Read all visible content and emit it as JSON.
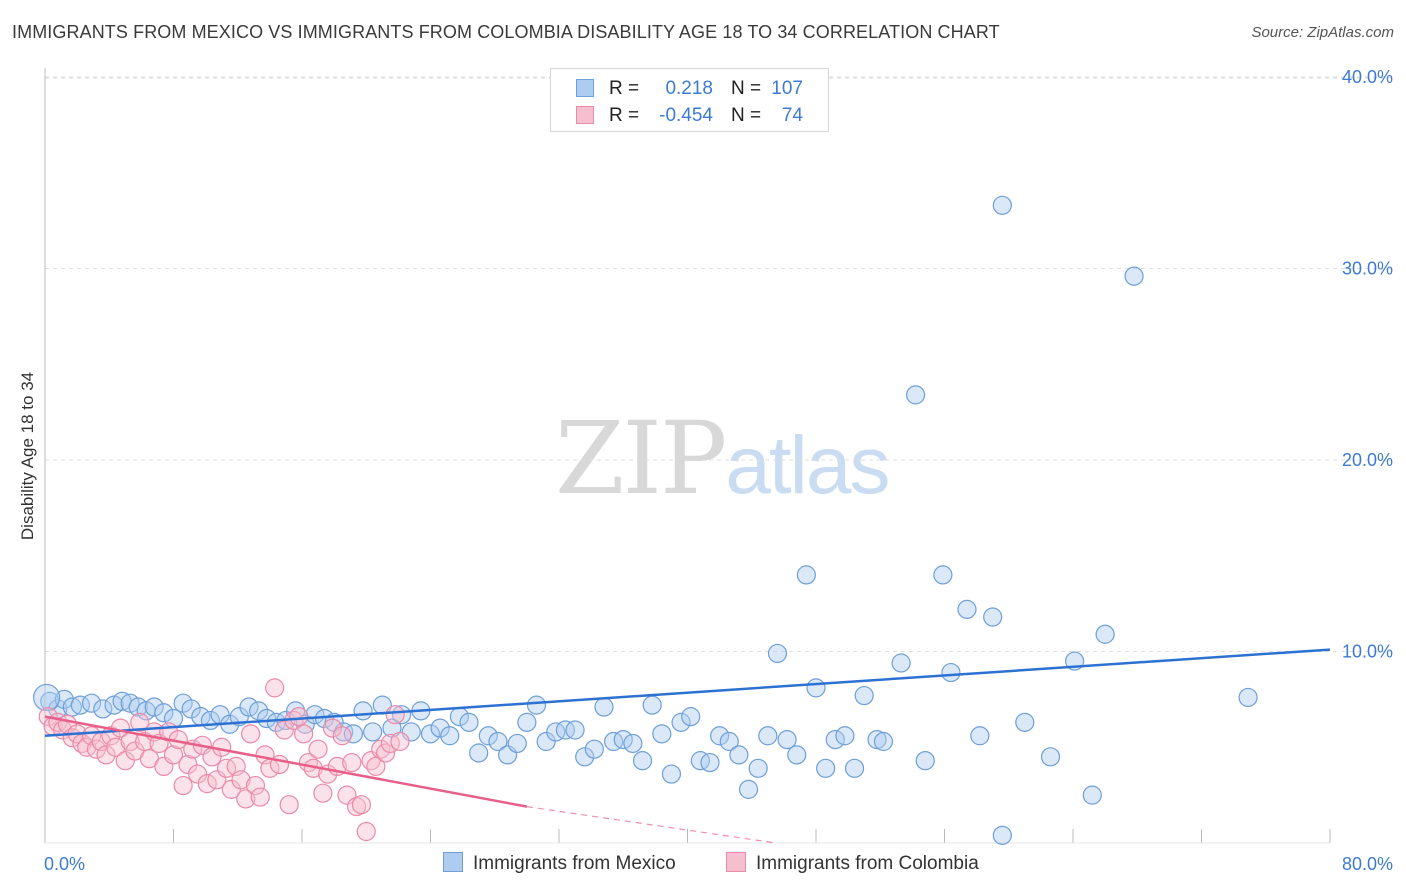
{
  "title": "IMMIGRANTS FROM MEXICO VS IMMIGRANTS FROM COLOMBIA DISABILITY AGE 18 TO 34 CORRELATION CHART",
  "source": "Source: ZipAtlas.com",
  "watermark": {
    "zip": "ZIP",
    "atlas": "atlas"
  },
  "colors": {
    "mexico_fill": "#aecbf0",
    "mexico_stroke": "#6e9fd9",
    "mexico_line": "#2d72d2",
    "colombia_fill": "#f6bfd0",
    "colombia_stroke": "#ea8aa8",
    "colombia_line": "#e8608a",
    "tick_text": "#3d7bd1",
    "grid": "#dddddd"
  },
  "legend": {
    "rows": [
      {
        "r_label": "R =",
        "r_value": "0.218",
        "n_label": "N =",
        "n_value": "107"
      },
      {
        "r_label": "R =",
        "r_value": "-0.454",
        "n_label": "N =",
        "n_value": "74"
      }
    ]
  },
  "bottom_legend": [
    "Immigrants from Mexico",
    "Immigrants from Colombia"
  ],
  "chart_data": {
    "type": "scatter",
    "title": "IMMIGRANTS FROM MEXICO VS IMMIGRANTS FROM COLOMBIA DISABILITY AGE 18 TO 34 CORRELATION CHART",
    "xlabel": "",
    "ylabel": "Disability Age 18 to 34",
    "xlim": [
      0,
      80
    ],
    "ylim": [
      0,
      41
    ],
    "x_tick_labels": [
      "0.0%",
      "80.0%"
    ],
    "y_ticks": [
      10,
      20,
      30,
      40
    ],
    "y_tick_labels": [
      "10.0%",
      "20.0%",
      "30.0%",
      "40.0%"
    ],
    "grid": true,
    "legend_position": "top-center",
    "series": [
      {
        "name": "Immigrants from Mexico",
        "r": 0.218,
        "n": 107,
        "trend": {
          "x": [
            0,
            80
          ],
          "y": [
            5.6,
            10.1
          ]
        },
        "points": [
          [
            0.3,
            7.4
          ],
          [
            0.8,
            7.0
          ],
          [
            1.2,
            7.5
          ],
          [
            1.7,
            7.1
          ],
          [
            2.2,
            7.2
          ],
          [
            2.9,
            7.3
          ],
          [
            3.6,
            7.0
          ],
          [
            4.3,
            7.2
          ],
          [
            4.8,
            7.4
          ],
          [
            5.3,
            7.3
          ],
          [
            5.8,
            7.1
          ],
          [
            6.3,
            6.9
          ],
          [
            6.8,
            7.1
          ],
          [
            7.4,
            6.8
          ],
          [
            8.0,
            6.5
          ],
          [
            8.6,
            7.3
          ],
          [
            9.1,
            7.0
          ],
          [
            9.7,
            6.6
          ],
          [
            10.3,
            6.4
          ],
          [
            10.9,
            6.7
          ],
          [
            11.5,
            6.2
          ],
          [
            12.1,
            6.6
          ],
          [
            12.7,
            7.1
          ],
          [
            13.3,
            6.9
          ],
          [
            13.8,
            6.5
          ],
          [
            14.4,
            6.3
          ],
          [
            15.0,
            6.4
          ],
          [
            15.6,
            6.9
          ],
          [
            16.2,
            6.2
          ],
          [
            16.8,
            6.7
          ],
          [
            17.4,
            6.5
          ],
          [
            18.0,
            6.3
          ],
          [
            18.6,
            5.8
          ],
          [
            19.2,
            5.7
          ],
          [
            19.8,
            6.9
          ],
          [
            20.4,
            5.8
          ],
          [
            21.0,
            7.2
          ],
          [
            21.6,
            6.0
          ],
          [
            22.2,
            6.7
          ],
          [
            22.8,
            5.8
          ],
          [
            23.4,
            6.9
          ],
          [
            24.0,
            5.7
          ],
          [
            24.6,
            6.0
          ],
          [
            25.2,
            5.6
          ],
          [
            25.8,
            6.6
          ],
          [
            26.4,
            6.3
          ],
          [
            27.0,
            4.7
          ],
          [
            27.6,
            5.6
          ],
          [
            28.2,
            5.3
          ],
          [
            28.8,
            4.6
          ],
          [
            29.4,
            5.2
          ],
          [
            30.0,
            6.3
          ],
          [
            30.6,
            7.2
          ],
          [
            31.2,
            5.3
          ],
          [
            31.8,
            5.8
          ],
          [
            32.4,
            5.9
          ],
          [
            33.0,
            5.9
          ],
          [
            33.6,
            4.5
          ],
          [
            34.2,
            4.9
          ],
          [
            34.8,
            7.1
          ],
          [
            35.4,
            5.3
          ],
          [
            36.0,
            5.4
          ],
          [
            36.6,
            5.2
          ],
          [
            37.2,
            4.3
          ],
          [
            37.8,
            7.2
          ],
          [
            38.4,
            5.7
          ],
          [
            39.0,
            3.6
          ],
          [
            39.6,
            6.3
          ],
          [
            40.2,
            6.6
          ],
          [
            40.8,
            4.3
          ],
          [
            41.4,
            4.2
          ],
          [
            42.0,
            5.6
          ],
          [
            42.6,
            5.3
          ],
          [
            43.2,
            4.6
          ],
          [
            43.8,
            2.8
          ],
          [
            44.4,
            3.9
          ],
          [
            45.0,
            5.6
          ],
          [
            45.6,
            9.9
          ],
          [
            46.2,
            5.4
          ],
          [
            46.8,
            4.6
          ],
          [
            47.4,
            14.0
          ],
          [
            48.0,
            8.1
          ],
          [
            48.6,
            3.9
          ],
          [
            49.2,
            5.4
          ],
          [
            49.8,
            5.6
          ],
          [
            50.4,
            3.9
          ],
          [
            51.0,
            7.7
          ],
          [
            51.8,
            5.4
          ],
          [
            52.2,
            5.3
          ],
          [
            53.3,
            9.4
          ],
          [
            54.2,
            23.4
          ],
          [
            54.8,
            4.3
          ],
          [
            55.9,
            14.0
          ],
          [
            56.4,
            8.9
          ],
          [
            57.4,
            12.2
          ],
          [
            58.2,
            5.6
          ],
          [
            59.0,
            11.8
          ],
          [
            59.6,
            0.4
          ],
          [
            59.6,
            33.3
          ],
          [
            61.0,
            6.3
          ],
          [
            62.6,
            4.5
          ],
          [
            64.1,
            9.5
          ],
          [
            65.2,
            2.5
          ],
          [
            66.0,
            10.9
          ],
          [
            67.8,
            29.6
          ],
          [
            74.9,
            7.6
          ],
          [
            0.1,
            7.6
          ]
        ]
      },
      {
        "name": "Immigrants from Colombia",
        "r": -0.454,
        "n": 74,
        "trend": {
          "x": [
            0,
            30
          ],
          "y": [
            6.6,
            1.9
          ],
          "dashed_x": [
            30,
            45.5
          ],
          "dashed_y": [
            1.9,
            0.0
          ]
        },
        "points": [
          [
            0.2,
            6.6
          ],
          [
            0.5,
            6.1
          ],
          [
            0.8,
            6.3
          ],
          [
            1.1,
            5.9
          ],
          [
            1.4,
            6.2
          ],
          [
            1.7,
            5.5
          ],
          [
            2.0,
            5.7
          ],
          [
            2.3,
            5.2
          ],
          [
            2.6,
            5.0
          ],
          [
            2.9,
            5.6
          ],
          [
            3.2,
            4.9
          ],
          [
            3.5,
            5.3
          ],
          [
            3.8,
            4.6
          ],
          [
            4.1,
            5.6
          ],
          [
            4.4,
            5.0
          ],
          [
            4.7,
            6.0
          ],
          [
            5.0,
            4.3
          ],
          [
            5.3,
            5.3
          ],
          [
            5.6,
            4.8
          ],
          [
            5.9,
            6.3
          ],
          [
            6.2,
            5.3
          ],
          [
            6.5,
            4.4
          ],
          [
            6.8,
            5.8
          ],
          [
            7.1,
            5.2
          ],
          [
            7.4,
            4.0
          ],
          [
            7.7,
            5.8
          ],
          [
            8.0,
            4.6
          ],
          [
            8.3,
            5.4
          ],
          [
            8.6,
            3.0
          ],
          [
            8.9,
            4.1
          ],
          [
            9.2,
            4.9
          ],
          [
            9.5,
            3.6
          ],
          [
            9.8,
            5.1
          ],
          [
            10.1,
            3.1
          ],
          [
            10.4,
            4.5
          ],
          [
            10.7,
            3.3
          ],
          [
            11.0,
            5.0
          ],
          [
            11.3,
            3.9
          ],
          [
            11.6,
            2.8
          ],
          [
            11.9,
            4.0
          ],
          [
            12.2,
            3.3
          ],
          [
            12.5,
            2.3
          ],
          [
            12.8,
            5.7
          ],
          [
            13.1,
            3.0
          ],
          [
            13.4,
            2.4
          ],
          [
            13.7,
            4.6
          ],
          [
            14.0,
            3.9
          ],
          [
            14.3,
            8.1
          ],
          [
            14.6,
            4.1
          ],
          [
            14.9,
            5.9
          ],
          [
            15.2,
            2.0
          ],
          [
            15.5,
            6.4
          ],
          [
            15.8,
            6.6
          ],
          [
            16.1,
            5.7
          ],
          [
            16.4,
            4.2
          ],
          [
            16.7,
            3.9
          ],
          [
            17.0,
            4.9
          ],
          [
            17.3,
            2.6
          ],
          [
            17.6,
            3.6
          ],
          [
            17.9,
            6.0
          ],
          [
            18.2,
            4.0
          ],
          [
            18.5,
            5.6
          ],
          [
            18.8,
            2.5
          ],
          [
            19.1,
            4.2
          ],
          [
            19.4,
            1.9
          ],
          [
            19.7,
            2.0
          ],
          [
            20.0,
            0.6
          ],
          [
            20.3,
            4.3
          ],
          [
            20.6,
            4.0
          ],
          [
            20.9,
            4.9
          ],
          [
            21.2,
            4.7
          ],
          [
            21.5,
            5.2
          ],
          [
            21.8,
            6.7
          ],
          [
            22.1,
            5.3
          ]
        ]
      }
    ]
  }
}
